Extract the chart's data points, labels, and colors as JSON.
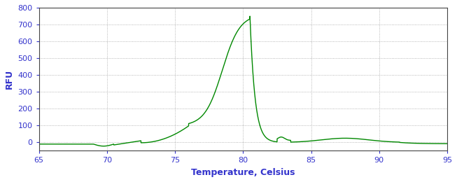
{
  "title": "",
  "xlabel": "Temperature, Celsius",
  "ylabel": "RFU",
  "xlim": [
    65,
    95
  ],
  "ylim": [
    -50,
    800
  ],
  "yticks": [
    0,
    100,
    200,
    300,
    400,
    500,
    600,
    700,
    800
  ],
  "xticks": [
    65,
    70,
    75,
    80,
    85,
    90,
    95
  ],
  "line_color": "#008800",
  "bg_color": "#ffffff",
  "grid_color": "#999999",
  "tick_color": "#3333cc",
  "label_color": "#3333cc",
  "spine_color": "#444444",
  "curve_peak_x": 80.5,
  "curve_peak_y": 760
}
